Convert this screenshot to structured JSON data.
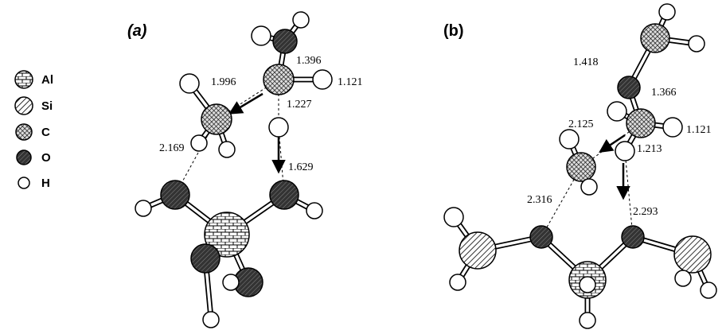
{
  "legend": [
    {
      "label": "Al"
    },
    {
      "label": "Si"
    },
    {
      "label": "C"
    },
    {
      "label": "O"
    },
    {
      "label": "H"
    }
  ],
  "panels": [
    {
      "label": "(a)",
      "distances": [
        "1.396",
        "1.121",
        "1.996",
        "1.227",
        "2.169",
        "1.629"
      ]
    },
    {
      "label": "(b)",
      "distances": [
        "1.418",
        "1.366",
        "2.125",
        "1.121",
        "1.213",
        "2.316",
        "2.293"
      ]
    }
  ]
}
